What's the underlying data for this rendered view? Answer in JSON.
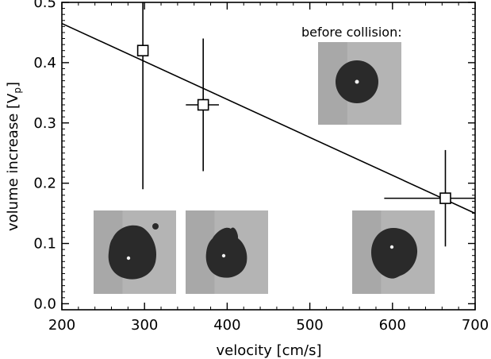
{
  "chart_data": {
    "type": "scatter",
    "title": "",
    "xlabel": "velocity [cm/s]",
    "ylabel": "volume increase [V",
    "ylabel_sub": "p",
    "ylabel_close": "]",
    "xlim": [
      200,
      700
    ],
    "ylim": [
      -0.01,
      0.5
    ],
    "x_ticks": [
      200,
      300,
      400,
      500,
      600,
      700
    ],
    "y_ticks": [
      0.0,
      0.1,
      0.2,
      0.3,
      0.4,
      0.5
    ],
    "x_tick_labels": [
      "200",
      "300",
      "400",
      "500",
      "600",
      "700"
    ],
    "y_tick_labels": [
      "0.0",
      "0.1",
      "0.2",
      "0.3",
      "0.4",
      "0.5"
    ],
    "grid": false,
    "points": [
      {
        "x": 298,
        "y": 0.42,
        "x_err": [
          298,
          298
        ],
        "y_err": [
          0.19,
          0.5
        ]
      },
      {
        "x": 371,
        "y": 0.33,
        "x_err": [
          350,
          390
        ],
        "y_err": [
          0.22,
          0.44
        ]
      },
      {
        "x": 664,
        "y": 0.175,
        "x_err": [
          590,
          700
        ],
        "y_err": [
          0.095,
          0.255
        ]
      }
    ],
    "fit_line": {
      "x": [
        200,
        700
      ],
      "y": [
        0.465,
        0.15
      ]
    },
    "annotation": "before collision:",
    "colors": {
      "drop": "#2a2a2a",
      "photo_bg": "#b4b4b4"
    }
  }
}
